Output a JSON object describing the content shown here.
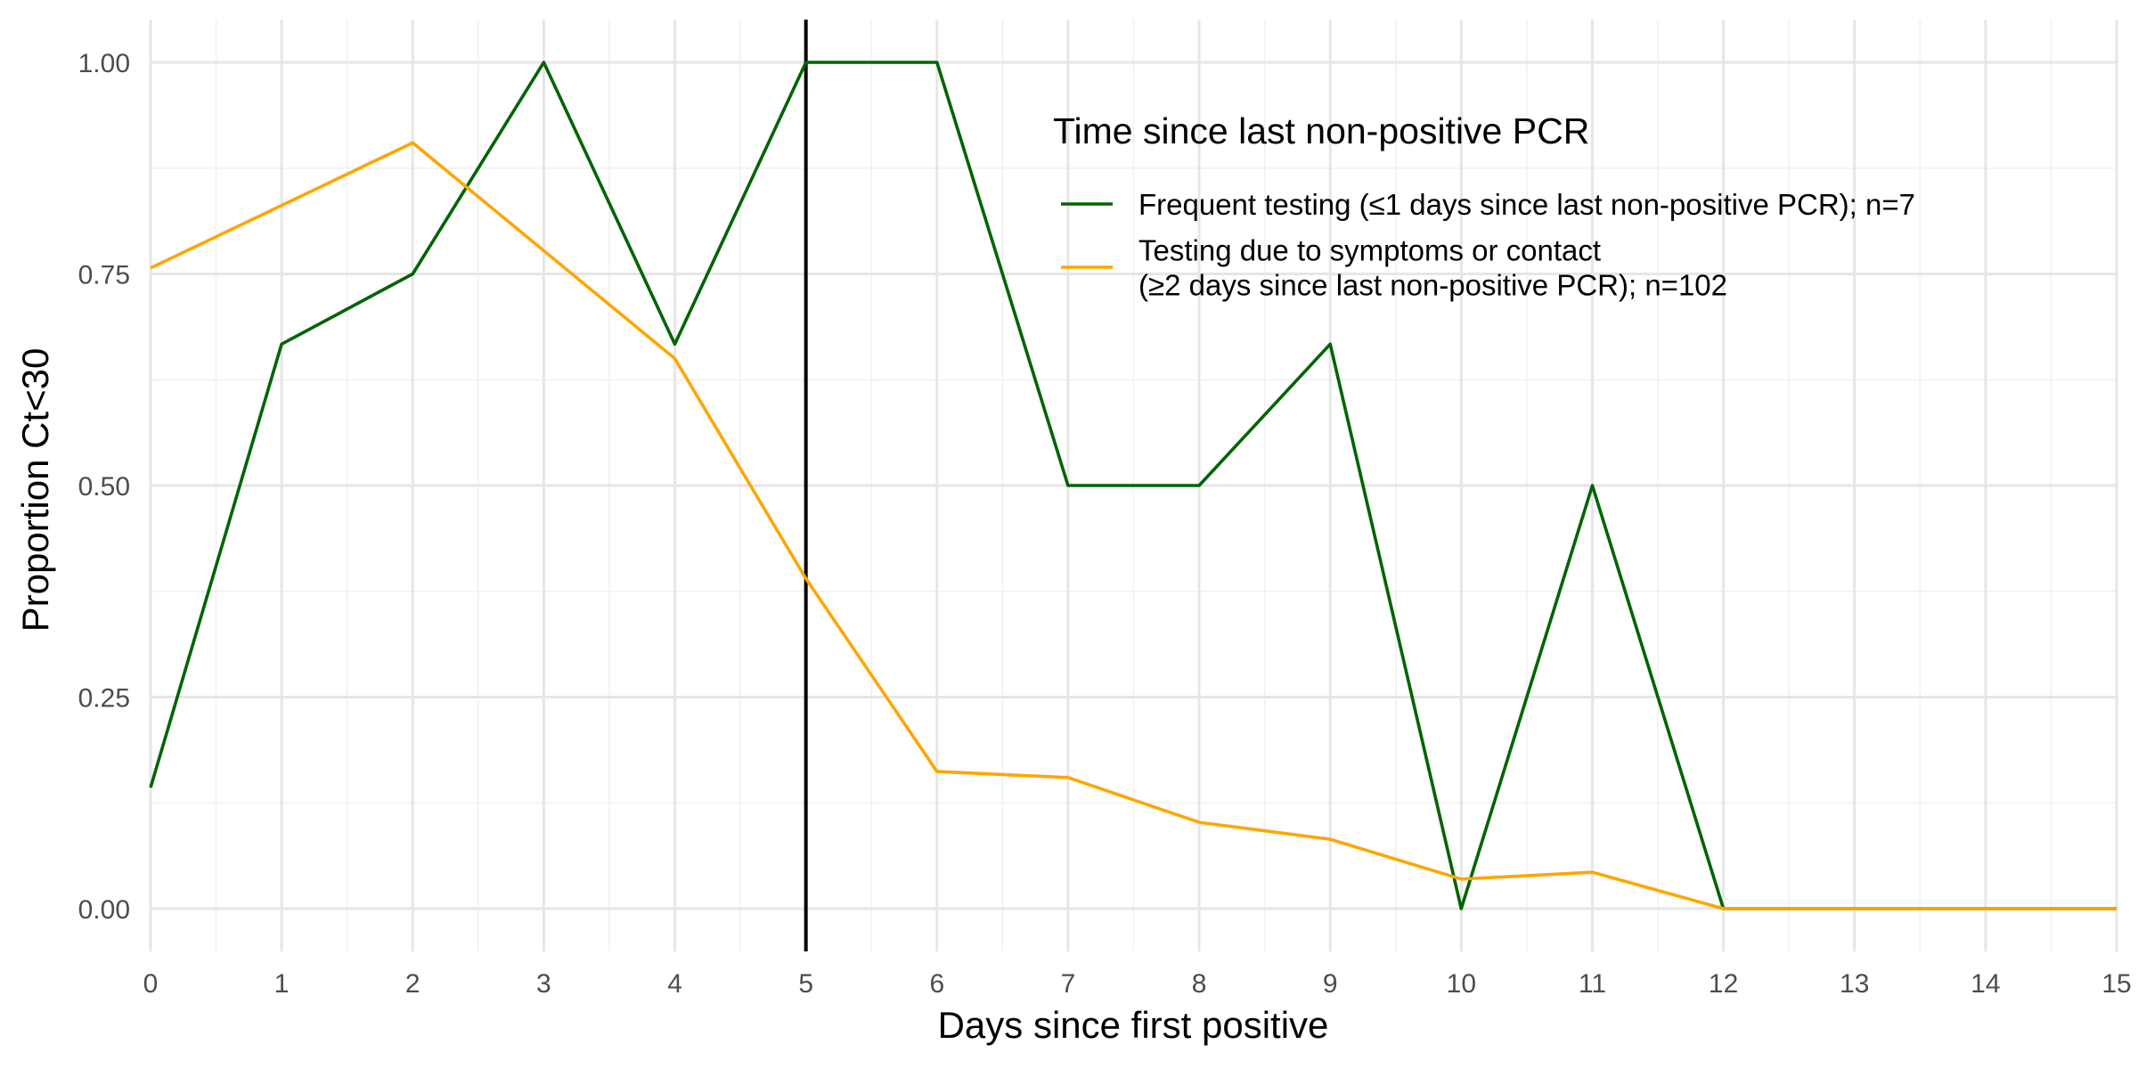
{
  "chart_data": {
    "type": "line",
    "xlabel": "Days since first positive",
    "ylabel": "Proportion Ct<30",
    "xlim": [
      0,
      15
    ],
    "ylim": [
      0,
      1
    ],
    "x_ticks": [
      0,
      1,
      2,
      3,
      4,
      5,
      6,
      7,
      8,
      9,
      10,
      11,
      12,
      13,
      14,
      15
    ],
    "y_ticks": [
      "0.00",
      "0.25",
      "0.50",
      "0.75",
      "1.00"
    ],
    "grid": true,
    "reference_line": {
      "x": 5,
      "color": "#000000"
    },
    "legend": {
      "title": "Time since last non-positive PCR",
      "placement": "top-right"
    },
    "series": [
      {
        "name": "Frequent testing (≤1 days since last non-positive PCR); n=7",
        "color": "#006400",
        "x": [
          0,
          1,
          2,
          3,
          4,
          5,
          6,
          7,
          8,
          9,
          10,
          11,
          12,
          13,
          14,
          15
        ],
        "values": [
          0.143,
          0.667,
          0.75,
          1.0,
          0.667,
          1.0,
          1.0,
          0.5,
          0.5,
          0.667,
          0.0,
          0.5,
          0.0,
          0.0,
          0.0,
          0.0
        ]
      },
      {
        "name": "Testing due to symptoms or contact\n(≥2 days since last non-positive PCR); n=102",
        "color": "#FFA500",
        "x": [
          0,
          2,
          4,
          5,
          6,
          7,
          8,
          9,
          10,
          11,
          12,
          13,
          14,
          15
        ],
        "values": [
          0.757,
          0.905,
          0.65,
          0.39,
          0.162,
          0.155,
          0.102,
          0.082,
          0.035,
          0.043,
          0.0,
          0.0,
          0.0,
          0.0
        ]
      }
    ]
  }
}
